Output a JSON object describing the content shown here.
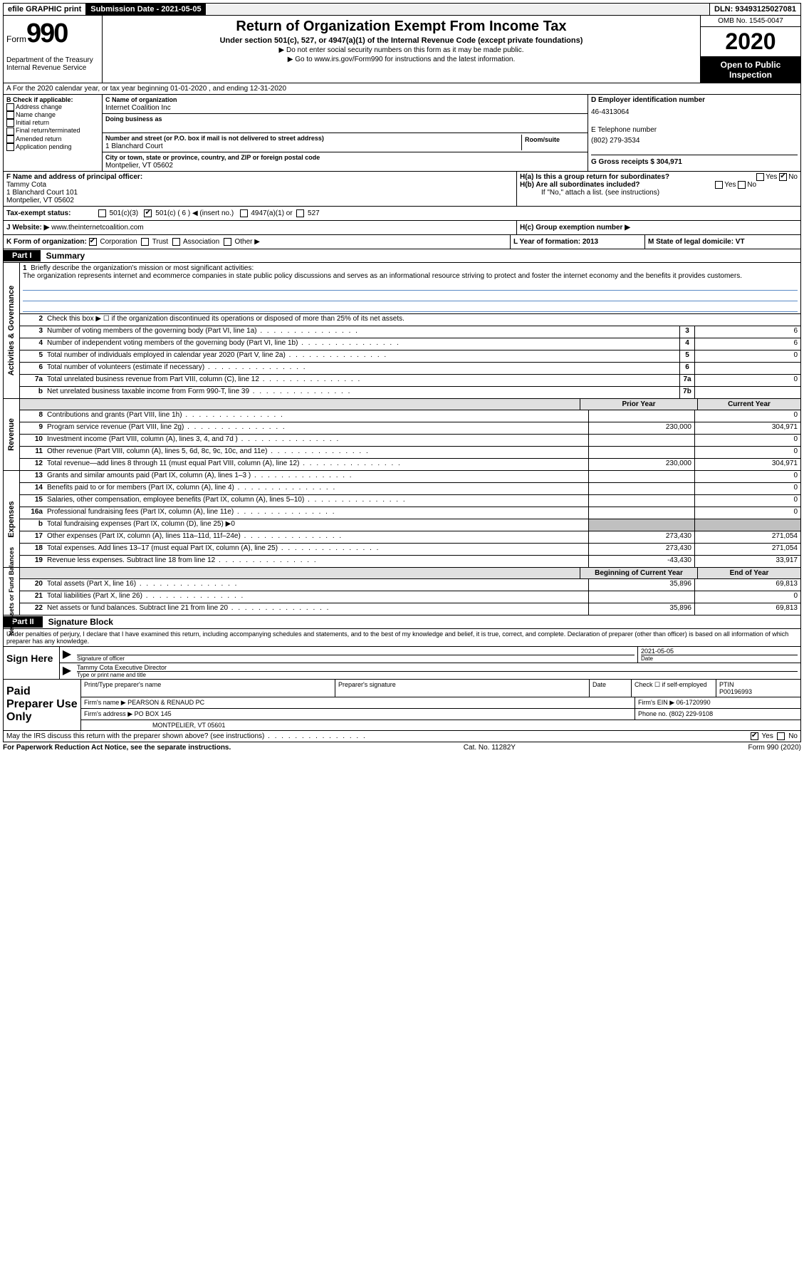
{
  "topbar": {
    "efile": "efile GRAPHIC print",
    "subdate_label": "Submission Date - 2021-05-05",
    "dln": "DLN: 93493125027081"
  },
  "header": {
    "form_text": "Form",
    "form_num": "990",
    "dept": "Department of the Treasury\nInternal Revenue Service",
    "title": "Return of Organization Exempt From Income Tax",
    "sub1": "Under section 501(c), 527, or 4947(a)(1) of the Internal Revenue Code (except private foundations)",
    "sub2a": "▶ Do not enter social security numbers on this form as it may be made public.",
    "sub2b": "▶ Go to www.irs.gov/Form990 for instructions and the latest information.",
    "omb": "OMB No. 1545-0047",
    "year": "2020",
    "open": "Open to Public Inspection"
  },
  "row_a": "A For the 2020 calendar year, or tax year beginning 01-01-2020    , and ending 12-31-2020",
  "col_b": {
    "title": "B Check if applicable:",
    "items": [
      "Address change",
      "Name change",
      "Initial return",
      "Final return/terminated",
      "Amended return",
      "Application pending"
    ]
  },
  "col_c": {
    "name_lbl": "C Name of organization",
    "name": "Internet Coalition Inc",
    "dba_lbl": "Doing business as",
    "dba": "",
    "addr_lbl": "Number and street (or P.O. box if mail is not delivered to street address)",
    "addr": "1 Blanchard Court",
    "room_lbl": "Room/suite",
    "city_lbl": "City or town, state or province, country, and ZIP or foreign postal code",
    "city": "Montpelier, VT  05602"
  },
  "col_d": {
    "ein_lbl": "D Employer identification number",
    "ein": "46-4313064",
    "tel_lbl": "E Telephone number",
    "tel": "(802) 279-3534",
    "gross_lbl": "G Gross receipts $ 304,971"
  },
  "row_f": {
    "lbl": "F  Name and address of principal officer:",
    "name": "Tammy Cota",
    "addr1": "1 Blanchard Court 101",
    "addr2": "Montpelier, VT  05602",
    "ha": "H(a)  Is this a group return for subordinates?",
    "ha_no": "No",
    "hb": "H(b)  Are all subordinates included?",
    "hb_note": "If \"No,\" attach a list. (see instructions)",
    "yes": "Yes",
    "no": "No"
  },
  "tax_status": {
    "lbl": "Tax-exempt status:",
    "opts": [
      "501(c)(3)",
      "501(c) ( 6 ) ◀ (insert no.)",
      "4947(a)(1) or",
      "527"
    ],
    "checked_idx": 1
  },
  "website": {
    "lbl": "J Website: ▶",
    "val": "www.theinternetcoalition.com"
  },
  "hc": "H(c)  Group exemption number ▶",
  "row_k": {
    "k": "K Form of organization:",
    "opts": [
      "Corporation",
      "Trust",
      "Association",
      "Other ▶"
    ],
    "checked_idx": 0,
    "l": "L Year of formation: 2013",
    "m": "M State of legal domicile: VT"
  },
  "part1": {
    "tab": "Part I",
    "title": "Summary"
  },
  "mission": {
    "num": "1",
    "lbl": "Briefly describe the organization's mission or most significant activities:",
    "text": "The organization represents internet and ecommerce companies in state public policy discussions and serves as an informational resource striving to protect and foster the internet economy and the benefits it provides customers."
  },
  "gov_lines": [
    {
      "n": "2",
      "d": "Check this box ▶ ☐  if the organization discontinued its operations or disposed of more than 25% of its net assets."
    },
    {
      "n": "3",
      "d": "Number of voting members of the governing body (Part VI, line 1a)",
      "box": "3",
      "v": "6"
    },
    {
      "n": "4",
      "d": "Number of independent voting members of the governing body (Part VI, line 1b)",
      "box": "4",
      "v": "6"
    },
    {
      "n": "5",
      "d": "Total number of individuals employed in calendar year 2020 (Part V, line 2a)",
      "box": "5",
      "v": "0"
    },
    {
      "n": "6",
      "d": "Total number of volunteers (estimate if necessary)",
      "box": "6",
      "v": ""
    },
    {
      "n": "7a",
      "d": "Total unrelated business revenue from Part VIII, column (C), line 12",
      "box": "7a",
      "v": "0"
    },
    {
      "n": "b",
      "d": "Net unrelated business taxable income from Form 990-T, line 39",
      "box": "7b",
      "v": ""
    }
  ],
  "hdr_prior": "Prior Year",
  "hdr_curr": "Current Year",
  "rev_lines": [
    {
      "n": "8",
      "d": "Contributions and grants (Part VIII, line 1h)",
      "p": "",
      "c": "0"
    },
    {
      "n": "9",
      "d": "Program service revenue (Part VIII, line 2g)",
      "p": "230,000",
      "c": "304,971"
    },
    {
      "n": "10",
      "d": "Investment income (Part VIII, column (A), lines 3, 4, and 7d )",
      "p": "",
      "c": "0"
    },
    {
      "n": "11",
      "d": "Other revenue (Part VIII, column (A), lines 5, 6d, 8c, 9c, 10c, and 11e)",
      "p": "",
      "c": "0"
    },
    {
      "n": "12",
      "d": "Total revenue—add lines 8 through 11 (must equal Part VIII, column (A), line 12)",
      "p": "230,000",
      "c": "304,971"
    }
  ],
  "exp_lines": [
    {
      "n": "13",
      "d": "Grants and similar amounts paid (Part IX, column (A), lines 1–3 )",
      "p": "",
      "c": "0"
    },
    {
      "n": "14",
      "d": "Benefits paid to or for members (Part IX, column (A), line 4)",
      "p": "",
      "c": "0"
    },
    {
      "n": "15",
      "d": "Salaries, other compensation, employee benefits (Part IX, column (A), lines 5–10)",
      "p": "",
      "c": "0"
    },
    {
      "n": "16a",
      "d": "Professional fundraising fees (Part IX, column (A), line 11e)",
      "p": "",
      "c": "0"
    },
    {
      "n": "b",
      "d": "Total fundraising expenses (Part IX, column (D), line 25) ▶0",
      "gray": true
    },
    {
      "n": "17",
      "d": "Other expenses (Part IX, column (A), lines 11a–11d, 11f–24e)",
      "p": "273,430",
      "c": "271,054"
    },
    {
      "n": "18",
      "d": "Total expenses. Add lines 13–17 (must equal Part IX, column (A), line 25)",
      "p": "273,430",
      "c": "271,054"
    },
    {
      "n": "19",
      "d": "Revenue less expenses. Subtract line 18 from line 12",
      "p": "-43,430",
      "c": "33,917"
    }
  ],
  "hdr_beg": "Beginning of Current Year",
  "hdr_end": "End of Year",
  "na_lines": [
    {
      "n": "20",
      "d": "Total assets (Part X, line 16)",
      "p": "35,896",
      "c": "69,813"
    },
    {
      "n": "21",
      "d": "Total liabilities (Part X, line 26)",
      "p": "",
      "c": "0"
    },
    {
      "n": "22",
      "d": "Net assets or fund balances. Subtract line 21 from line 20",
      "p": "35,896",
      "c": "69,813"
    }
  ],
  "side_labels": {
    "gov": "Activities & Governance",
    "rev": "Revenue",
    "exp": "Expenses",
    "na": "Net Assets or\nFund Balances"
  },
  "part2": {
    "tab": "Part II",
    "title": "Signature Block"
  },
  "sig": {
    "decl": "Under penalties of perjury, I declare that I have examined this return, including accompanying schedules and statements, and to the best of my knowledge and belief, it is true, correct, and complete. Declaration of preparer (other than officer) is based on all information of which preparer has any knowledge.",
    "sign_here": "Sign Here",
    "sig_officer_lbl": "Signature of officer",
    "date_val": "2021-05-05",
    "date_lbl": "Date",
    "name_title": "Tammy Cota  Executive Director",
    "name_lbl": "Type or print name and title"
  },
  "prep": {
    "title": "Paid Preparer Use Only",
    "r1": {
      "a": "Print/Type preparer's name",
      "b": "Preparer's signature",
      "c": "Date",
      "d": "Check ☐  if self-employed",
      "e_lbl": "PTIN",
      "e": "P00196993"
    },
    "r2": {
      "a": "Firm's name    ▶ PEARSON & RENAUD PC",
      "b": "Firm's EIN ▶ 06-1720990"
    },
    "r3": {
      "a": "Firm's address ▶ PO BOX 145",
      "b": "Phone no. (802) 229-9108"
    },
    "r4": "MONTPELIER, VT  05601"
  },
  "irs_discuss": {
    "q": "May the IRS discuss this return with the preparer shown above? (see instructions)",
    "yes": "Yes",
    "no": "No"
  },
  "footer": {
    "l": "For Paperwork Reduction Act Notice, see the separate instructions.",
    "m": "Cat. No. 11282Y",
    "r": "Form 990 (2020)"
  }
}
